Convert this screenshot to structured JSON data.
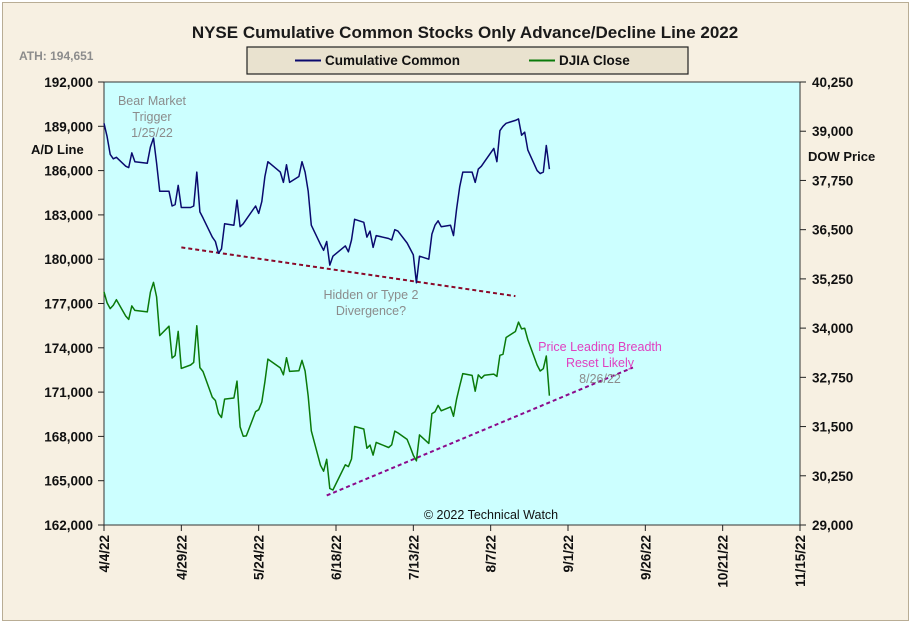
{
  "chart_data": {
    "type": "line",
    "title": "NYSE Cumulative Common Stocks Only Advance/Decline Line 2022",
    "ath_label": "ATH: 194,651",
    "left_axis": {
      "label": "A/D Line",
      "min": 162000,
      "max": 192000,
      "ticks": [
        "192,000",
        "189,000",
        "186,000",
        "183,000",
        "180,000",
        "177,000",
        "174,000",
        "171,000",
        "168,000",
        "165,000",
        "162,000"
      ]
    },
    "right_axis": {
      "label": "DOW Price",
      "min": 29000,
      "max": 40250,
      "ticks": [
        "40,250",
        "39,000",
        "37,750",
        "36,500",
        "35,250",
        "34,000",
        "32,750",
        "31,500",
        "30,250",
        "29,000"
      ]
    },
    "x_axis": {
      "start_date": "2022-04-04",
      "end_date": "2022-11-15",
      "ticks": [
        "4/4/22",
        "4/29/22",
        "5/24/22",
        "6/18/22",
        "7/13/22",
        "8/7/22",
        "9/1/22",
        "9/26/22",
        "10/21/22",
        "11/15/22"
      ]
    },
    "legend": [
      {
        "name": "Cumulative Common",
        "color": "#0a0a6e"
      },
      {
        "name": "DJIA Close",
        "color": "#0a7a0a"
      }
    ],
    "series": [
      {
        "name": "Cumulative Common",
        "axis": "left",
        "color": "#0a0a6e",
        "points": [
          [
            "2022-04-04",
            189200
          ],
          [
            "2022-04-05",
            188300
          ],
          [
            "2022-04-06",
            187100
          ],
          [
            "2022-04-07",
            186800
          ],
          [
            "2022-04-08",
            186900
          ],
          [
            "2022-04-11",
            186300
          ],
          [
            "2022-04-12",
            186200
          ],
          [
            "2022-04-13",
            187200
          ],
          [
            "2022-04-14",
            186600
          ],
          [
            "2022-04-18",
            186500
          ],
          [
            "2022-04-19",
            187600
          ],
          [
            "2022-04-20",
            188200
          ],
          [
            "2022-04-21",
            186500
          ],
          [
            "2022-04-22",
            184600
          ],
          [
            "2022-04-25",
            184600
          ],
          [
            "2022-04-26",
            183600
          ],
          [
            "2022-04-27",
            183700
          ],
          [
            "2022-04-28",
            185000
          ],
          [
            "2022-04-29",
            183500
          ],
          [
            "2022-05-02",
            183500
          ],
          [
            "2022-05-03",
            183600
          ],
          [
            "2022-05-04",
            185900
          ],
          [
            "2022-05-05",
            183200
          ],
          [
            "2022-05-06",
            182800
          ],
          [
            "2022-05-09",
            181500
          ],
          [
            "2022-05-10",
            181200
          ],
          [
            "2022-05-11",
            180400
          ],
          [
            "2022-05-12",
            180700
          ],
          [
            "2022-05-13",
            182400
          ],
          [
            "2022-05-16",
            182300
          ],
          [
            "2022-05-17",
            184000
          ],
          [
            "2022-05-18",
            182200
          ],
          [
            "2022-05-19",
            182400
          ],
          [
            "2022-05-20",
            182700
          ],
          [
            "2022-05-23",
            183600
          ],
          [
            "2022-05-24",
            183100
          ],
          [
            "2022-05-25",
            183900
          ],
          [
            "2022-05-26",
            185600
          ],
          [
            "2022-05-27",
            186600
          ],
          [
            "2022-05-31",
            185900
          ],
          [
            "2022-06-01",
            185200
          ],
          [
            "2022-06-02",
            186400
          ],
          [
            "2022-06-03",
            185200
          ],
          [
            "2022-06-06",
            185600
          ],
          [
            "2022-06-07",
            186600
          ],
          [
            "2022-06-08",
            185900
          ],
          [
            "2022-06-09",
            184600
          ],
          [
            "2022-06-10",
            182300
          ],
          [
            "2022-06-13",
            181000
          ],
          [
            "2022-06-14",
            180600
          ],
          [
            "2022-06-15",
            181200
          ],
          [
            "2022-06-16",
            179600
          ],
          [
            "2022-06-17",
            180200
          ],
          [
            "2022-06-21",
            180900
          ],
          [
            "2022-06-22",
            180500
          ],
          [
            "2022-06-23",
            181300
          ],
          [
            "2022-06-24",
            182700
          ],
          [
            "2022-06-27",
            182500
          ],
          [
            "2022-06-28",
            181500
          ],
          [
            "2022-06-29",
            181900
          ],
          [
            "2022-06-30",
            180800
          ],
          [
            "2022-07-01",
            181600
          ],
          [
            "2022-07-05",
            181400
          ],
          [
            "2022-07-06",
            181300
          ],
          [
            "2022-07-07",
            182000
          ],
          [
            "2022-07-08",
            181900
          ],
          [
            "2022-07-11",
            181100
          ],
          [
            "2022-07-12",
            180700
          ],
          [
            "2022-07-13",
            180300
          ],
          [
            "2022-07-14",
            178400
          ],
          [
            "2022-07-15",
            180200
          ],
          [
            "2022-07-18",
            180000
          ],
          [
            "2022-07-19",
            181700
          ],
          [
            "2022-07-20",
            182300
          ],
          [
            "2022-07-21",
            182600
          ],
          [
            "2022-07-22",
            182200
          ],
          [
            "2022-07-25",
            182300
          ],
          [
            "2022-07-26",
            181600
          ],
          [
            "2022-07-27",
            183400
          ],
          [
            "2022-07-28",
            184900
          ],
          [
            "2022-07-29",
            185900
          ],
          [
            "2022-08-01",
            185900
          ],
          [
            "2022-08-02",
            185200
          ],
          [
            "2022-08-03",
            186100
          ],
          [
            "2022-08-04",
            186300
          ],
          [
            "2022-08-05",
            186600
          ],
          [
            "2022-08-08",
            187500
          ],
          [
            "2022-08-09",
            186600
          ],
          [
            "2022-08-10",
            188700
          ],
          [
            "2022-08-11",
            189000
          ],
          [
            "2022-08-12",
            189200
          ],
          [
            "2022-08-15",
            189400
          ],
          [
            "2022-08-16",
            189500
          ],
          [
            "2022-08-17",
            188400
          ],
          [
            "2022-08-18",
            188600
          ],
          [
            "2022-08-19",
            187400
          ],
          [
            "2022-08-22",
            186000
          ],
          [
            "2022-08-23",
            185800
          ],
          [
            "2022-08-24",
            185900
          ],
          [
            "2022-08-25",
            187700
          ],
          [
            "2022-08-26",
            186100
          ]
        ]
      },
      {
        "name": "DJIA Close",
        "axis": "right",
        "color": "#0a7a0a",
        "points": [
          [
            "2022-04-04",
            34921
          ],
          [
            "2022-04-05",
            34641
          ],
          [
            "2022-04-06",
            34496
          ],
          [
            "2022-04-07",
            34583
          ],
          [
            "2022-04-08",
            34721
          ],
          [
            "2022-04-11",
            34308
          ],
          [
            "2022-04-12",
            34220
          ],
          [
            "2022-04-13",
            34564
          ],
          [
            "2022-04-14",
            34451
          ],
          [
            "2022-04-18",
            34412
          ],
          [
            "2022-04-19",
            34911
          ],
          [
            "2022-04-20",
            35161
          ],
          [
            "2022-04-21",
            34793
          ],
          [
            "2022-04-22",
            33811
          ],
          [
            "2022-04-25",
            34049
          ],
          [
            "2022-04-26",
            33240
          ],
          [
            "2022-04-27",
            33302
          ],
          [
            "2022-04-28",
            33916
          ],
          [
            "2022-04-29",
            32977
          ],
          [
            "2022-05-02",
            33062
          ],
          [
            "2022-05-03",
            33129
          ],
          [
            "2022-05-04",
            34061
          ],
          [
            "2022-05-05",
            32998
          ],
          [
            "2022-05-06",
            32899
          ],
          [
            "2022-05-09",
            32246
          ],
          [
            "2022-05-10",
            32161
          ],
          [
            "2022-05-11",
            31834
          ],
          [
            "2022-05-12",
            31730
          ],
          [
            "2022-05-13",
            32197
          ],
          [
            "2022-05-16",
            32224
          ],
          [
            "2022-05-17",
            32655
          ],
          [
            "2022-05-18",
            31490
          ],
          [
            "2022-05-19",
            31254
          ],
          [
            "2022-05-20",
            31262
          ],
          [
            "2022-05-23",
            31880
          ],
          [
            "2022-05-24",
            31929
          ],
          [
            "2022-05-25",
            32120
          ],
          [
            "2022-05-26",
            32637
          ],
          [
            "2022-05-27",
            33213
          ],
          [
            "2022-05-31",
            32990
          ],
          [
            "2022-06-01",
            32814
          ],
          [
            "2022-06-02",
            33248
          ],
          [
            "2022-06-03",
            32900
          ],
          [
            "2022-06-06",
            32916
          ],
          [
            "2022-06-07",
            33180
          ],
          [
            "2022-06-08",
            32910
          ],
          [
            "2022-06-09",
            32272
          ],
          [
            "2022-06-10",
            31393
          ],
          [
            "2022-06-13",
            30517
          ],
          [
            "2022-06-14",
            30365
          ],
          [
            "2022-06-15",
            30668
          ],
          [
            "2022-06-16",
            29927
          ],
          [
            "2022-06-17",
            29889
          ],
          [
            "2022-06-21",
            30530
          ],
          [
            "2022-06-22",
            30484
          ],
          [
            "2022-06-23",
            30677
          ],
          [
            "2022-06-24",
            31501
          ],
          [
            "2022-06-27",
            31439
          ],
          [
            "2022-06-28",
            30947
          ],
          [
            "2022-06-29",
            31029
          ],
          [
            "2022-06-30",
            30775
          ],
          [
            "2022-07-01",
            31097
          ],
          [
            "2022-07-05",
            30968
          ],
          [
            "2022-07-06",
            31037
          ],
          [
            "2022-07-07",
            31385
          ],
          [
            "2022-07-08",
            31338
          ],
          [
            "2022-07-11",
            31174
          ],
          [
            "2022-07-12",
            30982
          ],
          [
            "2022-07-13",
            30773
          ],
          [
            "2022-07-14",
            30630
          ],
          [
            "2022-07-15",
            31288
          ],
          [
            "2022-07-18",
            31072
          ],
          [
            "2022-07-19",
            31827
          ],
          [
            "2022-07-20",
            31874
          ],
          [
            "2022-07-21",
            32036
          ],
          [
            "2022-07-22",
            31899
          ],
          [
            "2022-07-25",
            32000
          ],
          [
            "2022-07-26",
            31761
          ],
          [
            "2022-07-27",
            32198
          ],
          [
            "2022-07-28",
            32529
          ],
          [
            "2022-07-29",
            32845
          ],
          [
            "2022-08-01",
            32798
          ],
          [
            "2022-08-02",
            32397
          ],
          [
            "2022-08-03",
            32812
          ],
          [
            "2022-08-04",
            32726
          ],
          [
            "2022-08-05",
            32803
          ],
          [
            "2022-08-08",
            32833
          ],
          [
            "2022-08-09",
            32774
          ],
          [
            "2022-08-10",
            33309
          ],
          [
            "2022-08-11",
            33336
          ],
          [
            "2022-08-12",
            33761
          ],
          [
            "2022-08-15",
            33913
          ],
          [
            "2022-08-16",
            34152
          ],
          [
            "2022-08-17",
            33981
          ],
          [
            "2022-08-18",
            33999
          ],
          [
            "2022-08-19",
            33707
          ],
          [
            "2022-08-22",
            33064
          ],
          [
            "2022-08-23",
            32910
          ],
          [
            "2022-08-24",
            32969
          ],
          [
            "2022-08-25",
            33292
          ],
          [
            "2022-08-26",
            32283
          ]
        ]
      }
    ],
    "trendlines": [
      {
        "axis": "left",
        "color": "#8b0a2a",
        "from": [
          "2022-04-29",
          180800
        ],
        "to": [
          "2022-08-15",
          177500
        ]
      },
      {
        "axis": "right",
        "color": "#8b0a8b",
        "from": [
          "2022-06-15",
          29750
        ],
        "to": [
          "2022-09-22",
          33000
        ]
      }
    ],
    "annotations": [
      {
        "lines": [
          "Bear Market",
          "Trigger",
          "1/25/22"
        ],
        "style": "gray"
      },
      {
        "lines": [
          "Hidden  or  Type  2",
          "Divergence?"
        ],
        "style": "gray"
      },
      {
        "lines": [
          "Price Leading  Breadth",
          "Reset Likely"
        ],
        "style": "pink"
      },
      {
        "lines": [
          "8/26/22"
        ],
        "style": "gray"
      }
    ],
    "copyright": "© 2022 Technical Watch",
    "plot_background": "#ccffff",
    "grid": false,
    "legend_position": "top-center"
  }
}
